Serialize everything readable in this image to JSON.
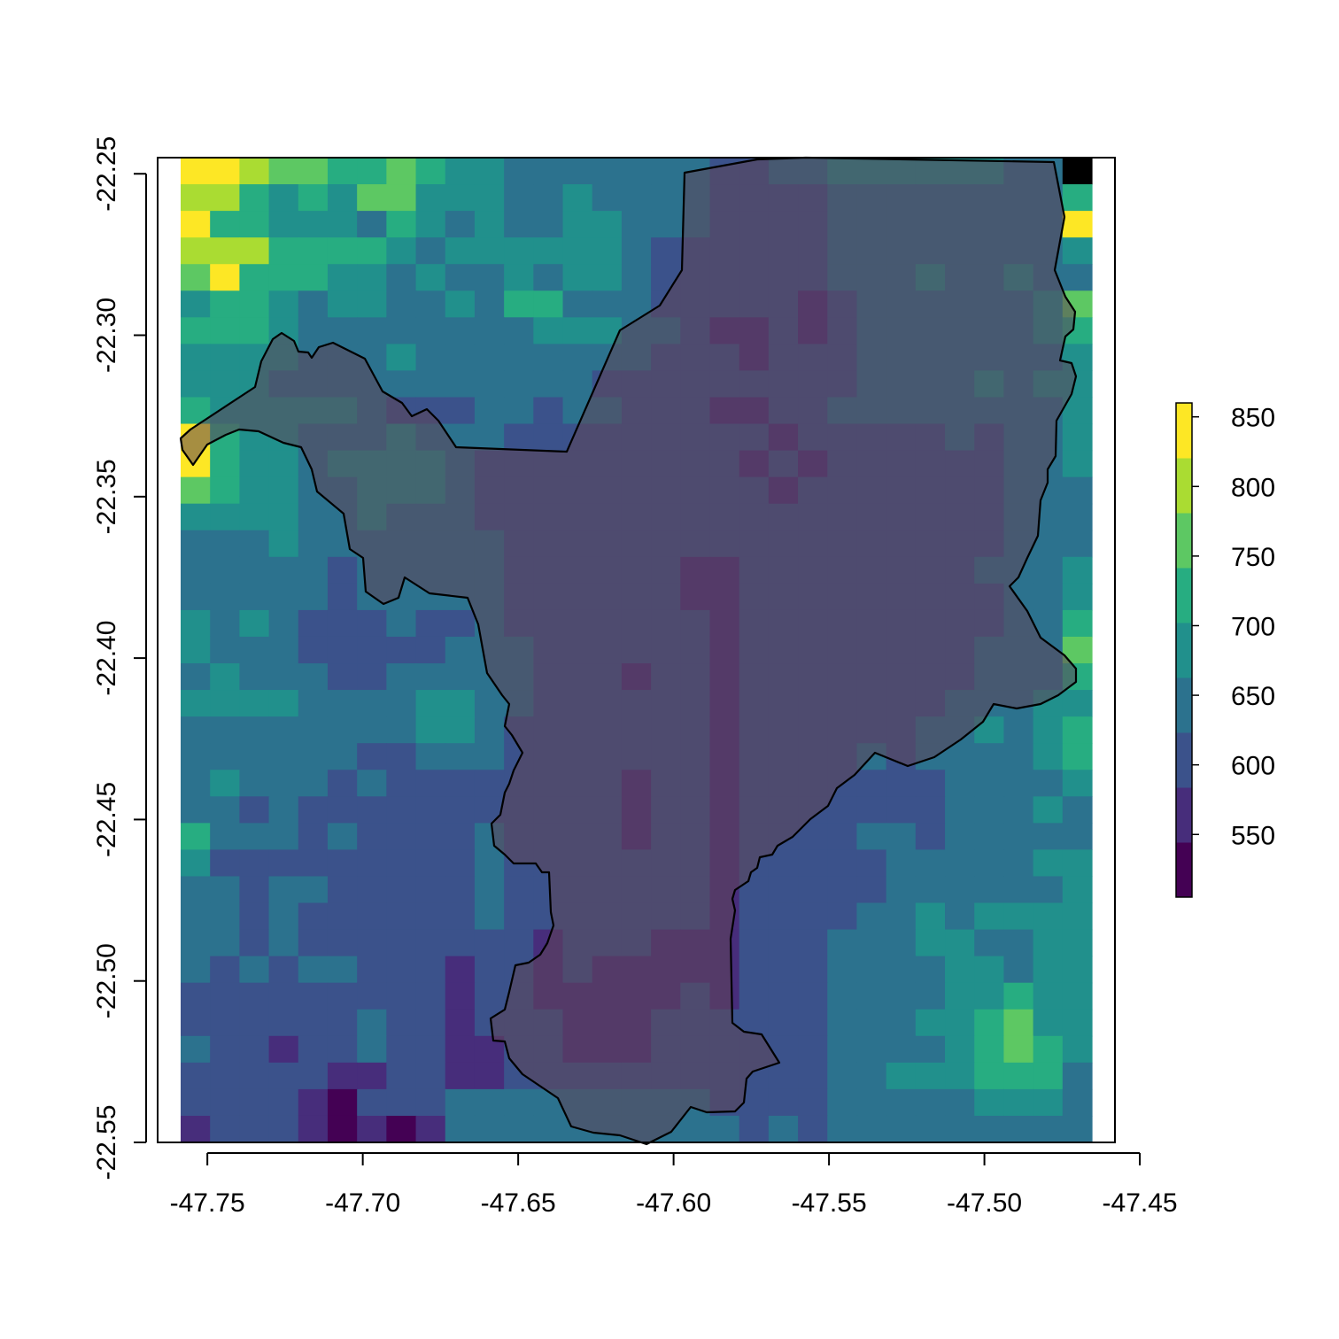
{
  "chart_data": {
    "type": "heatmap",
    "title": "",
    "xlabel": "",
    "ylabel": "",
    "xlim": [
      -47.766,
      -47.458
    ],
    "ylim": [
      -22.55,
      -22.245
    ],
    "x_ticks": [
      "-47.75",
      "-47.70",
      "-47.65",
      "-47.60",
      "-47.55",
      "-47.50",
      "-47.45"
    ],
    "y_ticks": [
      "-22.25",
      "-22.30",
      "-22.35",
      "-22.40",
      "-22.45",
      "-22.50",
      "-22.55"
    ],
    "grid": false,
    "legend": {
      "position": "right",
      "ticks": [
        "550",
        "600",
        "650",
        "700",
        "750",
        "800",
        "850"
      ],
      "range": [
        505,
        860
      ],
      "palette": [
        "#440154",
        "#472D7B",
        "#3B528B",
        "#2C728E",
        "#21908C",
        "#27AD81",
        "#5DC863",
        "#AADC32",
        "#FDE725"
      ]
    },
    "raster": {
      "x_range": [
        -47.758,
        -47.463
      ],
      "y_range": [
        -22.55,
        -22.247
      ],
      "grid": [
        "8876655654433333332233444444339",
        "7754546644433433332222333333335",
        "8554443543433443332222333333338",
        "7775555434444443222222333333334",
        "6855544343343443222222333433433",
        "4554344334355333222221233333346",
        "5554333333334443321121233333345",
        "4444333433333333222122233333334",
        "4443333333333322222222233334344",
        "5444443222332332221122333333334",
        "8544333433322222222212222232334",
        "8544344443222222222121222222334",
        "6544334443222222222212222222333",
        "4444334333222222222222222222333",
        "3334333333322222222222222222333",
        "3333323333322222211222222223334",
        "3333323333322222211222222222334",
        "4343222322322222221222222222335",
        "4333222223332222221222222223336",
        "3433322333332221221222222223335",
        "4444333344332222221222222233344",
        "3333333344322222221222222334345",
        "3333332233322222221222232333345",
        "3433323222222221221222222233334",
        "3323222222222221221222222233343",
        "5333232222322221221222233233333",
        "4222222222322222221222223333344",
        "3323322222322222221222223333334",
        "3323222222322222221222233434444",
        "3323222222221222111222333443344",
        "3232332221221211111222333344344",
        "2222222221221111121222333344544",
        "2222223221222111222222333445644",
        "3221223221122111222222333345654",
        "2222211221122222222222334445553",
        "2222102223333333332222333334443",
        "1222101013333333333232333333333"
      ]
    }
  }
}
